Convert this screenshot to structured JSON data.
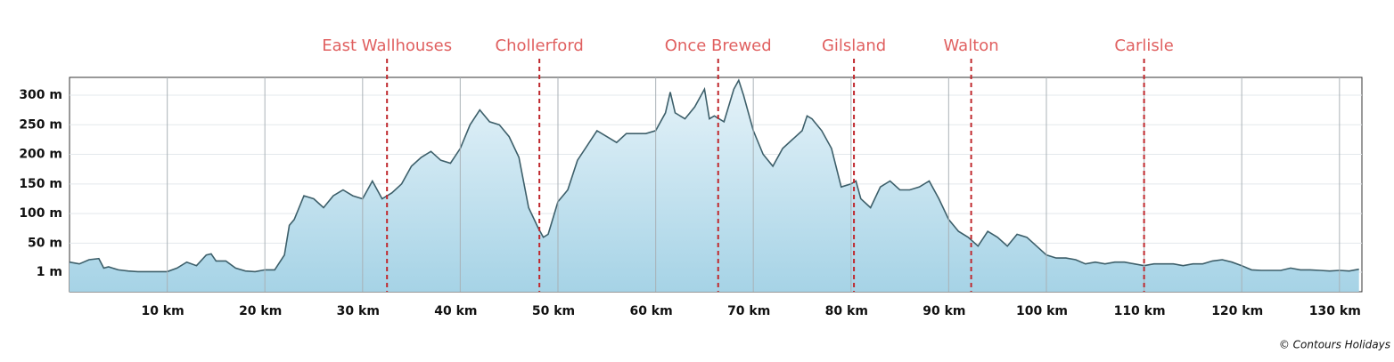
{
  "chart_data": {
    "type": "area",
    "x": [
      0,
      1,
      2,
      3,
      3.5,
      4,
      5,
      6,
      7,
      8,
      9,
      10,
      11,
      12,
      13,
      14,
      14.5,
      15,
      16,
      17,
      18,
      19,
      20,
      21,
      22,
      22.5,
      23,
      24,
      25,
      26,
      27,
      28,
      29,
      30,
      31,
      32,
      33,
      34,
      35,
      36,
      37,
      38,
      39,
      40,
      41,
      42,
      43,
      44,
      45,
      46,
      47,
      48,
      48.5,
      49,
      50,
      51,
      52,
      53,
      54,
      55,
      56,
      57,
      58,
      59,
      60,
      61,
      61.5,
      62,
      63,
      64,
      65,
      65.5,
      66,
      67,
      68,
      68.5,
      69,
      70,
      71,
      72,
      73,
      74,
      75,
      75.5,
      76,
      77,
      78,
      79,
      80,
      80.5,
      81,
      82,
      83,
      84,
      85,
      86,
      87,
      88,
      89,
      90,
      91,
      92,
      93,
      94,
      95,
      96,
      97,
      98,
      99,
      100,
      101,
      102,
      103,
      104,
      105,
      106,
      107,
      108,
      109,
      110,
      111,
      112,
      113,
      114,
      115,
      116,
      117,
      118,
      119,
      120,
      121,
      122,
      123,
      124,
      125,
      126,
      127,
      128,
      129,
      130,
      131,
      132
    ],
    "values": [
      18,
      15,
      22,
      24,
      8,
      10,
      5,
      3,
      2,
      2,
      2,
      2,
      8,
      18,
      12,
      30,
      32,
      20,
      20,
      8,
      3,
      2,
      5,
      5,
      30,
      80,
      90,
      130,
      125,
      110,
      130,
      140,
      130,
      125,
      155,
      125,
      135,
      150,
      180,
      195,
      205,
      190,
      185,
      210,
      250,
      275,
      255,
      250,
      230,
      195,
      110,
      75,
      60,
      65,
      120,
      140,
      190,
      215,
      240,
      230,
      220,
      235,
      235,
      235,
      240,
      270,
      305,
      270,
      260,
      280,
      310,
      260,
      265,
      255,
      310,
      325,
      300,
      240,
      200,
      180,
      210,
      225,
      240,
      265,
      260,
      240,
      210,
      145,
      150,
      155,
      125,
      110,
      145,
      155,
      140,
      140,
      145,
      155,
      125,
      90,
      70,
      60,
      45,
      70,
      60,
      45,
      65,
      60,
      45,
      30,
      25,
      25,
      22,
      15,
      18,
      15,
      18,
      18,
      15,
      12,
      15,
      15,
      15,
      12,
      15,
      15,
      20,
      22,
      18,
      12,
      5,
      4,
      4,
      4,
      8,
      5,
      5,
      4,
      3,
      4,
      3,
      6
    ],
    "color": "#3d5f6a",
    "xlim": [
      0,
      132.3
    ],
    "ylim": [
      -32,
      330
    ],
    "xticks": [
      {
        "value": 10,
        "label": "10 km"
      },
      {
        "value": 20,
        "label": "20 km"
      },
      {
        "value": 30,
        "label": "30 km"
      },
      {
        "value": 40,
        "label": "40 km"
      },
      {
        "value": 50,
        "label": "50 km"
      },
      {
        "value": 60,
        "label": "60 km"
      },
      {
        "value": 70,
        "label": "70 km"
      },
      {
        "value": 80,
        "label": "80 km"
      },
      {
        "value": 90,
        "label": "90 km"
      },
      {
        "value": 100,
        "label": "100 km"
      },
      {
        "value": 110,
        "label": "110 km"
      },
      {
        "value": 120,
        "label": "120 km"
      },
      {
        "value": 130,
        "label": "130 km"
      }
    ],
    "yticks": [
      {
        "value": 1,
        "label": "1 m"
      },
      {
        "value": 50,
        "label": "50 m"
      },
      {
        "value": 100,
        "label": "100 m"
      },
      {
        "value": 150,
        "label": "150 m"
      },
      {
        "value": 200,
        "label": "200 m"
      },
      {
        "value": 250,
        "label": "250 m"
      },
      {
        "value": 300,
        "label": "300 m"
      }
    ],
    "grid": true,
    "annotations": [
      {
        "label": "East Wallhouses",
        "x": 32.5
      },
      {
        "label": "Chollerford",
        "x": 48.1
      },
      {
        "label": "Once Brewed",
        "x": 66.4
      },
      {
        "label": "Gilsland",
        "x": 80.3
      },
      {
        "label": "Walton",
        "x": 92.3
      },
      {
        "label": "Carlisle",
        "x": 110.0
      }
    ],
    "annotation_color": "#c0282d",
    "credit": "© Contours Holidays"
  }
}
